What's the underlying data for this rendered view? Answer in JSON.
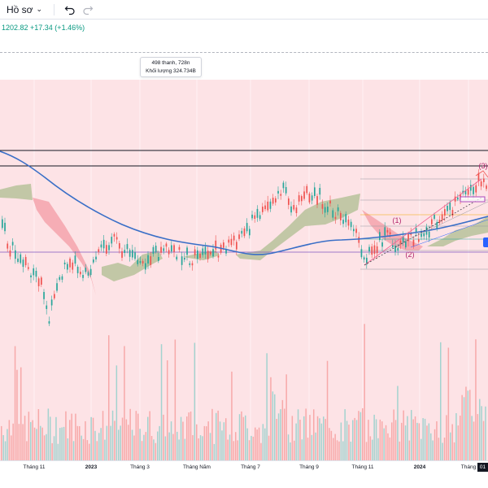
{
  "toolbar": {
    "profile_label": "Hồ sơ",
    "icons": [
      "chevron-down-icon",
      "undo-icon",
      "redo-icon"
    ]
  },
  "header": {
    "price_change": "1202.82  +17.34 (+1.46%)"
  },
  "tooltip": {
    "line1": "498 thanh, 728n",
    "line2": "Khối lượng 324.734B"
  },
  "chart": {
    "wave_labels": [
      "(1)",
      "(2)",
      "(3)"
    ],
    "colors": {
      "background_zone": "#fde3e6",
      "ma_line": "#3a6fc7",
      "up_candle": "#26a69a",
      "down_candle": "#ef5350",
      "cloud_bull": "#b7c29a",
      "cloud_bear": "#f5a3ab",
      "wave_label": "#b0246b",
      "volume_up": "#a3d3cf",
      "volume_down": "#f7a9a9"
    }
  },
  "xaxis": {
    "labels": [
      "Tháng 11",
      "2023",
      "Tháng 3",
      "Tháng Năm",
      "Tháng 7",
      "Tháng 9",
      "Tháng 11",
      "2024",
      "Tháng"
    ],
    "current_date": "01"
  }
}
